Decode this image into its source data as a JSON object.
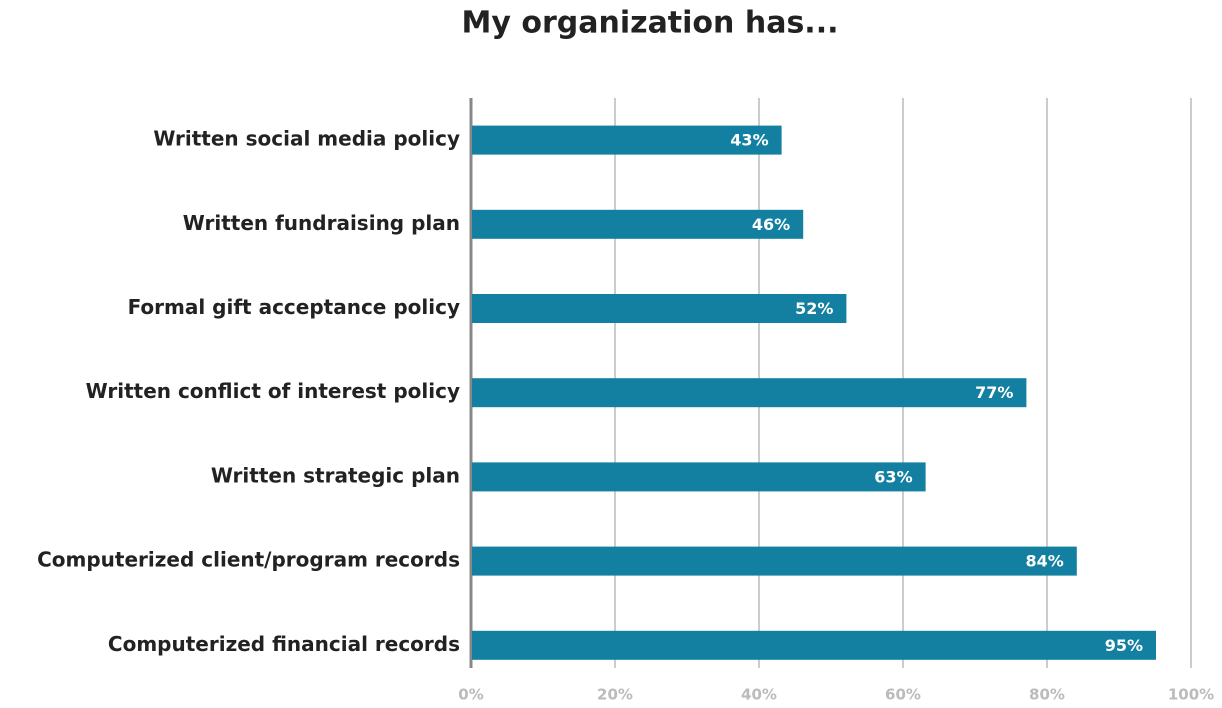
{
  "chart_data": {
    "type": "bar",
    "orientation": "horizontal",
    "title": "My organization has...",
    "categories": [
      "Written social media policy",
      "Written fundraising plan",
      "Formal gift acceptance policy",
      "Written conflict of interest policy",
      "Written strategic plan",
      "Computerized client/program records",
      "Computerized financial records"
    ],
    "values": [
      43,
      46,
      52,
      77,
      63,
      84,
      95
    ],
    "value_labels": [
      "43%",
      "46%",
      "52%",
      "77%",
      "63%",
      "84%",
      "95%"
    ],
    "color": "#1380a1",
    "xlim": [
      0,
      100
    ],
    "xticks": [
      {
        "value": 0,
        "label": "0%"
      },
      {
        "value": 20,
        "label": "20%"
      },
      {
        "value": 40,
        "label": "40%"
      },
      {
        "value": 60,
        "label": "60%"
      },
      {
        "value": 80,
        "label": "80%"
      },
      {
        "value": 100,
        "label": "100%"
      }
    ],
    "grid": true
  }
}
